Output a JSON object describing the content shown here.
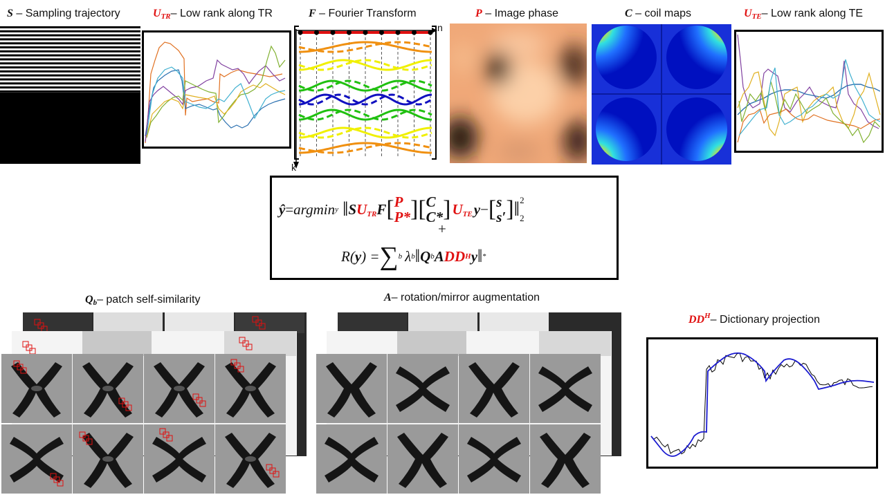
{
  "panels": {
    "sampling": {
      "symbol": "S",
      "label": " – Sampling trajectory"
    },
    "utr": {
      "symbol": "U",
      "subscript": "TR",
      "label": "– Low rank along TR"
    },
    "fourier": {
      "symbol": "F",
      "label": " – Fourier Transform",
      "axis_n": "n",
      "axis_k": "k"
    },
    "phase": {
      "symbol": "P",
      "label": " – Image phase"
    },
    "coil": {
      "symbol": "C",
      "label": " – coil maps"
    },
    "ute": {
      "symbol": "U",
      "subscript": "TE",
      "label": "– Low rank along TE"
    },
    "patch": {
      "symbol": "Q",
      "subscript": "b",
      "label": "– patch self-similarity"
    },
    "augment": {
      "symbol": "A",
      "label": "– rotation/mirror augmentation"
    },
    "dictionary": {
      "symbol": "DD",
      "superscript": "H",
      "label": "– Dictionary projection"
    }
  },
  "equation": {
    "line1_lhs": "ŷ",
    "line1_eq": " = ",
    "line1_op": "argmin",
    "line1_opsub": "y",
    "norm_S": "S",
    "norm_U": "U",
    "norm_Usub": "TR",
    "norm_F": "F",
    "mat1_top": "P",
    "mat1_bot": "P*",
    "mat2_top": "C",
    "mat2_bot": "C*",
    "norm_U2": "U",
    "norm_U2sub": "TE",
    "norm_y": "y",
    "minus": " − ",
    "mat3_top": "s",
    "mat3_bot": "s′",
    "pow": "2",
    "normsub": "2",
    "plus": "+",
    "line3_R": "R(",
    "line3_y": "y",
    "line3_close": ") = ",
    "sum": "∑",
    "sum_sub": "b",
    "lambda": "λ",
    "lambda_sub": "b",
    "Q": "Q",
    "Q_sub": "b",
    "A": "A",
    "DD": "DD",
    "H": "H",
    "y2": "y",
    "star": "*"
  },
  "colors": {
    "red": "#e01010",
    "orange": "#f09010",
    "yellow": "#f0f000",
    "green": "#20c010",
    "blue": "#1010c0"
  }
}
